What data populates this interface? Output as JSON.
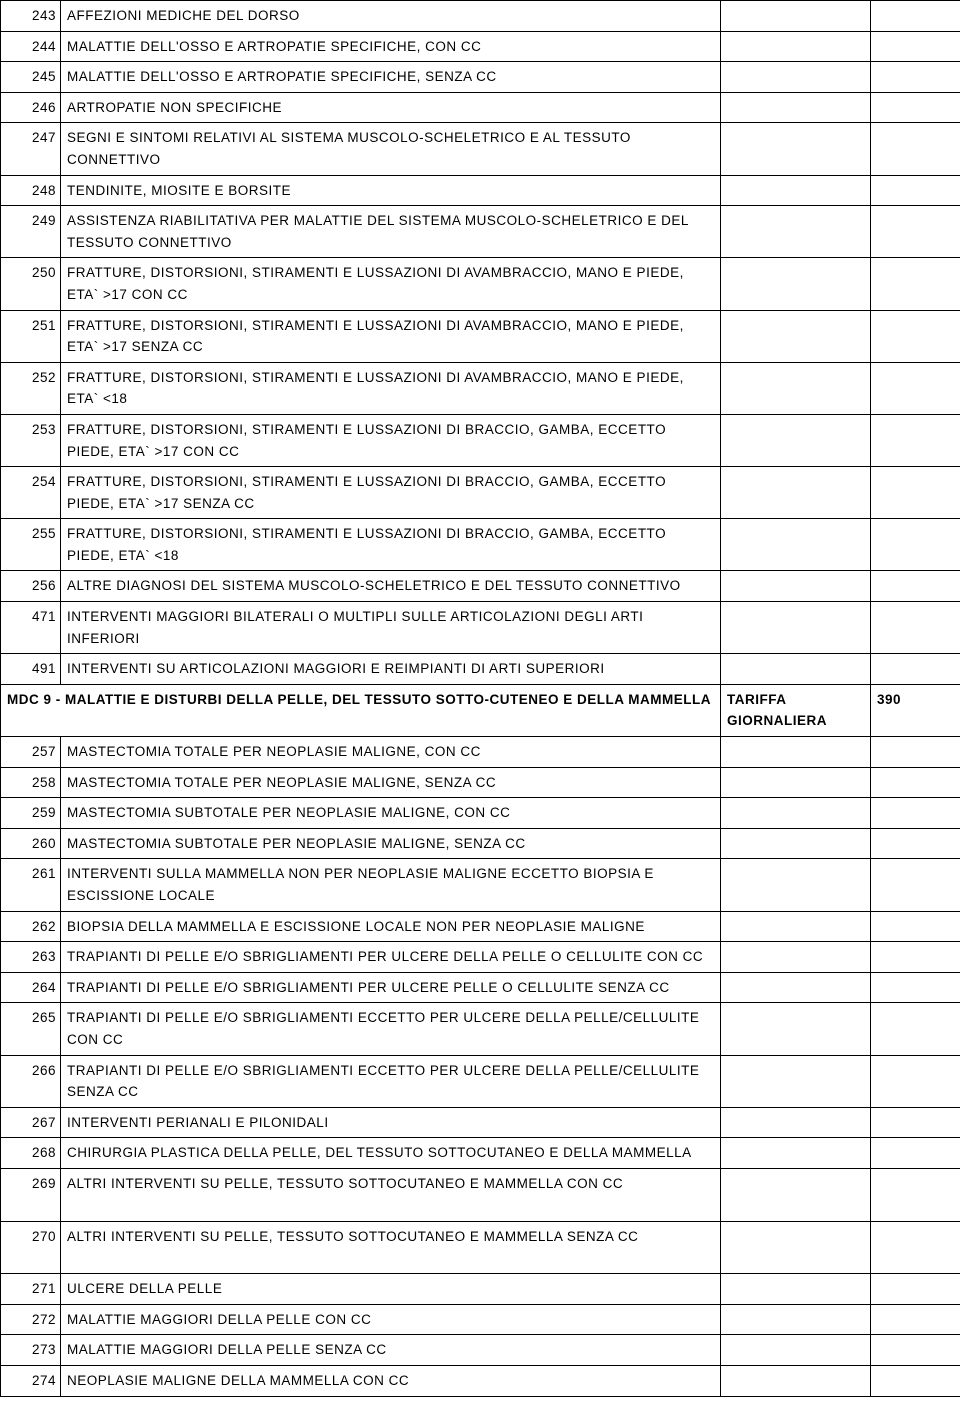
{
  "rows_a": [
    {
      "code": "243",
      "desc": "AFFEZIONI MEDICHE DEL DORSO"
    },
    {
      "code": "244",
      "desc": "MALATTIE DELL'OSSO E ARTROPATIE SPECIFICHE, CON CC"
    },
    {
      "code": "245",
      "desc": "MALATTIE DELL'OSSO E ARTROPATIE SPECIFICHE, SENZA CC"
    },
    {
      "code": "246",
      "desc": "ARTROPATIE NON SPECIFICHE"
    },
    {
      "code": "247",
      "desc": "SEGNI E SINTOMI RELATIVI AL SISTEMA MUSCOLO-SCHELETRICO E AL TESSUTO CONNETTIVO"
    },
    {
      "code": "248",
      "desc": "TENDINITE, MIOSITE E BORSITE"
    },
    {
      "code": "249",
      "desc": "ASSISTENZA RIABILITATIVA PER MALATTIE DEL SISTEMA MUSCOLO-SCHELETRICO E DEL TESSUTO CONNETTIVO"
    },
    {
      "code": "250",
      "desc": "FRATTURE, DISTORSIONI, STIRAMENTI E LUSSAZIONI DI AVAMBRACCIO, MANO E PIEDE, ETA` >17 CON CC"
    },
    {
      "code": "251",
      "desc": "FRATTURE, DISTORSIONI, STIRAMENTI E LUSSAZIONI DI AVAMBRACCIO, MANO E PIEDE, ETA` >17 SENZA CC"
    },
    {
      "code": "252",
      "desc": "FRATTURE, DISTORSIONI, STIRAMENTI E LUSSAZIONI DI AVAMBRACCIO, MANO E PIEDE, ETA` <18"
    },
    {
      "code": "253",
      "desc": "FRATTURE, DISTORSIONI, STIRAMENTI E LUSSAZIONI DI  BRACCIO, GAMBA, ECCETTO PIEDE, ETA` >17 CON CC"
    },
    {
      "code": "254",
      "desc": "FRATTURE, DISTORSIONI, STIRAMENTI E LUSSAZIONI DI  BRACCIO, GAMBA, ECCETTO PIEDE, ETA` >17 SENZA CC"
    },
    {
      "code": "255",
      "desc": "FRATTURE, DISTORSIONI, STIRAMENTI E LUSSAZIONI DI  BRACCIO, GAMBA, ECCETTO PIEDE, ETA` <18"
    },
    {
      "code": "256",
      "desc": "ALTRE DIAGNOSI DEL SISTEMA MUSCOLO-SCHELETRICO E DEL TESSUTO CONNETTIVO"
    },
    {
      "code": "471",
      "desc": "INTERVENTI MAGGIORI BILATERALI O MULTIPLI SULLE ARTICOLAZIONI DEGLI ARTI INFERIORI"
    },
    {
      "code": "491",
      "desc": "INTERVENTI SU ARTICOLAZIONI MAGGIORI E REIMPIANTI DI ARTI SUPERIORI"
    }
  ],
  "section": {
    "title": "MDC 9 -  MALATTIE E DISTURBI DELLA PELLE, DEL TESSUTO SOTTO-CUTENEO E DELLA MAMMELLA",
    "tariff_label": "TARIFFA GIORNALIERA",
    "tariff_value": "390"
  },
  "rows_b": [
    {
      "code": "257",
      "desc": "MASTECTOMIA TOTALE PER NEOPLASIE MALIGNE, CON CC"
    },
    {
      "code": "258",
      "desc": "MASTECTOMIA TOTALE PER NEOPLASIE MALIGNE, SENZA CC"
    },
    {
      "code": "259",
      "desc": "MASTECTOMIA SUBTOTALE PER NEOPLASIE MALIGNE, CON CC"
    },
    {
      "code": "260",
      "desc": "MASTECTOMIA SUBTOTALE PER NEOPLASIE MALIGNE, SENZA CC"
    },
    {
      "code": "261",
      "desc": "INTERVENTI SULLA MAMMELLA NON PER NEOPLASIE MALIGNE ECCETTO BIOPSIA E ESCISSIONE LOCALE"
    },
    {
      "code": "262",
      "desc": "BIOPSIA DELLA MAMMELLA E ESCISSIONE LOCALE NON PER NEOPLASIE MALIGNE"
    },
    {
      "code": "263",
      "desc": "TRAPIANTI DI PELLE E/O SBRIGLIAMENTI PER ULCERE DELLA PELLE O CELLULITE CON CC"
    },
    {
      "code": "264",
      "desc": "TRAPIANTI DI PELLE E/O SBRIGLIAMENTI PER ULCERE PELLE O CELLULITE SENZA CC"
    },
    {
      "code": "265",
      "desc": "TRAPIANTI DI PELLE E/O SBRIGLIAMENTI ECCETTO PER ULCERE DELLA PELLE/CELLULITE CON CC"
    },
    {
      "code": "266",
      "desc": "TRAPIANTI DI PELLE E/O SBRIGLIAMENTI ECCETTO PER ULCERE DELLA PELLE/CELLULITE SENZA CC"
    },
    {
      "code": "267",
      "desc": "INTERVENTI PERIANALI E PILONIDALI"
    },
    {
      "code": "268",
      "desc": "CHIRURGIA PLASTICA DELLA PELLE, DEL TESSUTO SOTTOCUTANEO E DELLA MAMMELLA"
    },
    {
      "code": "269",
      "desc": "ALTRI INTERVENTI SU PELLE, TESSUTO SOTTOCUTANEO E MAMMELLA CON CC",
      "tall": true
    },
    {
      "code": "270",
      "desc": "ALTRI INTERVENTI SU PELLE, TESSUTO SOTTOCUTANEO E MAMMELLA SENZA CC",
      "tall": true
    },
    {
      "code": "271",
      "desc": "ULCERE DELLA PELLE"
    },
    {
      "code": "272",
      "desc": "MALATTIE MAGGIORI DELLA  PELLE CON CC"
    },
    {
      "code": "273",
      "desc": "MALATTIE MAGGIORI DELLA PELLE SENZA CC"
    },
    {
      "code": "274",
      "desc": "NEOPLASIE MALIGNE DELLA MAMMELLA CON CC"
    }
  ]
}
